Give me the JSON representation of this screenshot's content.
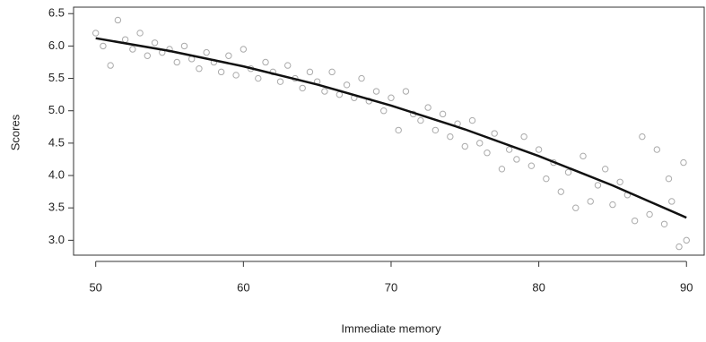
{
  "chart_data": {
    "type": "scatter",
    "xlabel": "Immediate memory",
    "ylabel": "Scores",
    "xlim": [
      48.5,
      91.2
    ],
    "ylim": [
      2.77,
      6.6
    ],
    "xticks": [
      50,
      60,
      70,
      80,
      90
    ],
    "yticks": [
      {
        "value": 3,
        "label": "3.0"
      },
      3.5,
      {
        "value": 4,
        "label": "4.0"
      },
      4.5,
      {
        "value": 5,
        "label": "5.0"
      },
      5.5,
      {
        "value": 6,
        "label": "6.0"
      },
      6.5
    ],
    "series": [
      {
        "type": "scatter",
        "color": "#aaaaaa",
        "x": [
          50,
          50.5,
          51,
          51.5,
          52,
          52.5,
          53,
          53.5,
          54,
          54.5,
          55,
          55.5,
          56,
          56.5,
          57,
          57.5,
          58,
          58.5,
          59,
          59.5,
          60,
          60.5,
          61,
          61.5,
          62,
          62.5,
          63,
          63.5,
          64,
          64.5,
          65,
          65.5,
          66,
          66.5,
          67,
          67.5,
          68,
          68.5,
          69,
          69.5,
          70,
          70.5,
          71,
          71.5,
          72,
          72.5,
          73,
          73.5,
          74,
          74.5,
          75,
          75.5,
          76,
          76.5,
          77,
          77.5,
          78,
          78.5,
          79,
          79.5,
          80,
          80.5,
          81,
          81.5,
          82,
          82.5,
          83,
          83.5,
          84,
          84.5,
          85,
          85.5,
          86,
          86.5,
          87,
          87.5,
          88,
          88.5,
          89,
          89.5,
          90,
          89.8,
          88.8
        ],
        "values": [
          6.2,
          6.0,
          5.7,
          6.4,
          6.1,
          5.95,
          6.2,
          5.85,
          6.05,
          5.9,
          5.95,
          5.75,
          6.0,
          5.8,
          5.65,
          5.9,
          5.75,
          5.6,
          5.85,
          5.55,
          5.95,
          5.65,
          5.5,
          5.75,
          5.6,
          5.45,
          5.7,
          5.5,
          5.35,
          5.6,
          5.45,
          5.3,
          5.6,
          5.25,
          5.4,
          5.2,
          5.5,
          5.15,
          5.3,
          5.0,
          5.2,
          4.7,
          5.3,
          4.95,
          4.85,
          5.05,
          4.7,
          4.95,
          4.6,
          4.8,
          4.45,
          4.85,
          4.5,
          4.35,
          4.65,
          4.1,
          4.4,
          4.25,
          4.6,
          4.15,
          4.4,
          3.95,
          4.2,
          3.75,
          4.05,
          3.5,
          4.3,
          3.6,
          3.85,
          4.1,
          3.55,
          3.9,
          3.7,
          3.3,
          4.6,
          3.4,
          4.4,
          3.25,
          3.6,
          2.9,
          3.0,
          4.2,
          3.95
        ]
      },
      {
        "type": "line",
        "color": "#111111",
        "x": [
          50,
          55,
          60,
          65,
          70,
          75,
          80,
          85,
          90
        ],
        "values": [
          6.12,
          5.924,
          5.686,
          5.405,
          5.08,
          4.712,
          4.3,
          3.847,
          3.35
        ]
      }
    ]
  }
}
